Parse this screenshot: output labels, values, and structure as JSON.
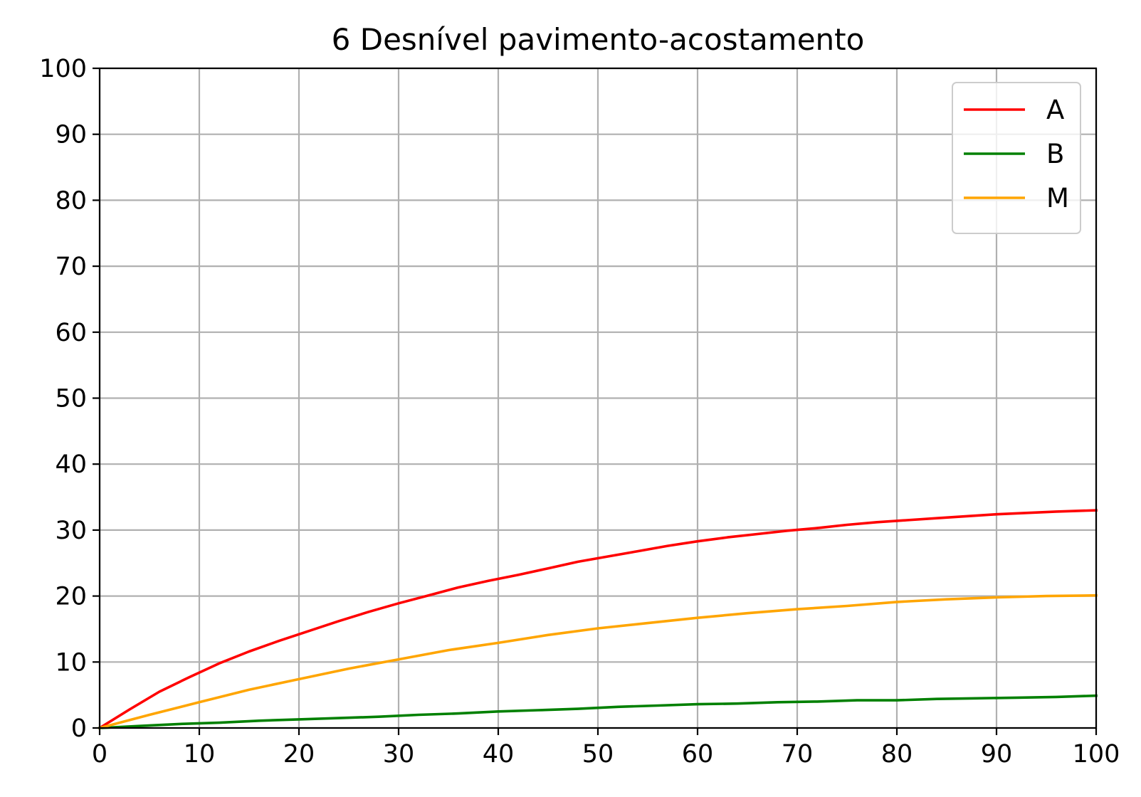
{
  "chart_data": {
    "type": "line",
    "title": "6 Desnível pavimento-acostamento",
    "xlabel": "",
    "ylabel": "",
    "xlim": [
      0,
      100
    ],
    "ylim": [
      0,
      100
    ],
    "xticks": [
      "0",
      "10",
      "20",
      "30",
      "40",
      "50",
      "60",
      "70",
      "80",
      "90",
      "100"
    ],
    "yticks": [
      "0",
      "10",
      "20",
      "30",
      "40",
      "50",
      "60",
      "70",
      "80",
      "90",
      "100"
    ],
    "grid": true,
    "legend_position": "top-right",
    "series": [
      {
        "name": "A",
        "color": "#ff0000",
        "x": [
          0,
          3,
          6,
          9,
          12,
          15,
          18,
          21,
          24,
          27,
          30,
          33,
          36,
          39,
          42,
          45,
          48,
          51,
          54,
          57,
          60,
          63,
          66,
          69,
          72,
          75,
          78,
          81,
          84,
          87,
          90,
          93,
          96,
          100
        ],
        "y": [
          0,
          2.8,
          5.5,
          7.7,
          9.8,
          11.6,
          13.2,
          14.7,
          16.2,
          17.6,
          18.9,
          20.1,
          21.3,
          22.3,
          23.2,
          24.2,
          25.2,
          26.0,
          26.8,
          27.6,
          28.3,
          28.9,
          29.4,
          29.9,
          30.3,
          30.8,
          31.2,
          31.5,
          31.8,
          32.1,
          32.4,
          32.6,
          32.8,
          33.0
        ]
      },
      {
        "name": "B",
        "color": "#008000",
        "x": [
          0,
          4,
          8,
          12,
          16,
          20,
          24,
          28,
          32,
          36,
          40,
          44,
          48,
          52,
          56,
          60,
          64,
          68,
          72,
          76,
          80,
          84,
          88,
          92,
          96,
          100
        ],
        "y": [
          0,
          0.3,
          0.6,
          0.8,
          1.1,
          1.3,
          1.5,
          1.7,
          2.0,
          2.2,
          2.5,
          2.7,
          2.9,
          3.2,
          3.4,
          3.6,
          3.7,
          3.9,
          4.0,
          4.2,
          4.2,
          4.4,
          4.5,
          4.6,
          4.7,
          4.9
        ]
      },
      {
        "name": "M",
        "color": "#ffa500",
        "x": [
          0,
          5,
          10,
          15,
          20,
          25,
          30,
          35,
          40,
          45,
          50,
          55,
          60,
          65,
          70,
          75,
          80,
          85,
          90,
          95,
          100
        ],
        "y": [
          0,
          2.0,
          3.9,
          5.8,
          7.4,
          9.0,
          10.4,
          11.8,
          12.9,
          14.1,
          15.1,
          15.9,
          16.7,
          17.4,
          18.0,
          18.5,
          19.1,
          19.5,
          19.8,
          20.0,
          20.1
        ]
      }
    ]
  }
}
